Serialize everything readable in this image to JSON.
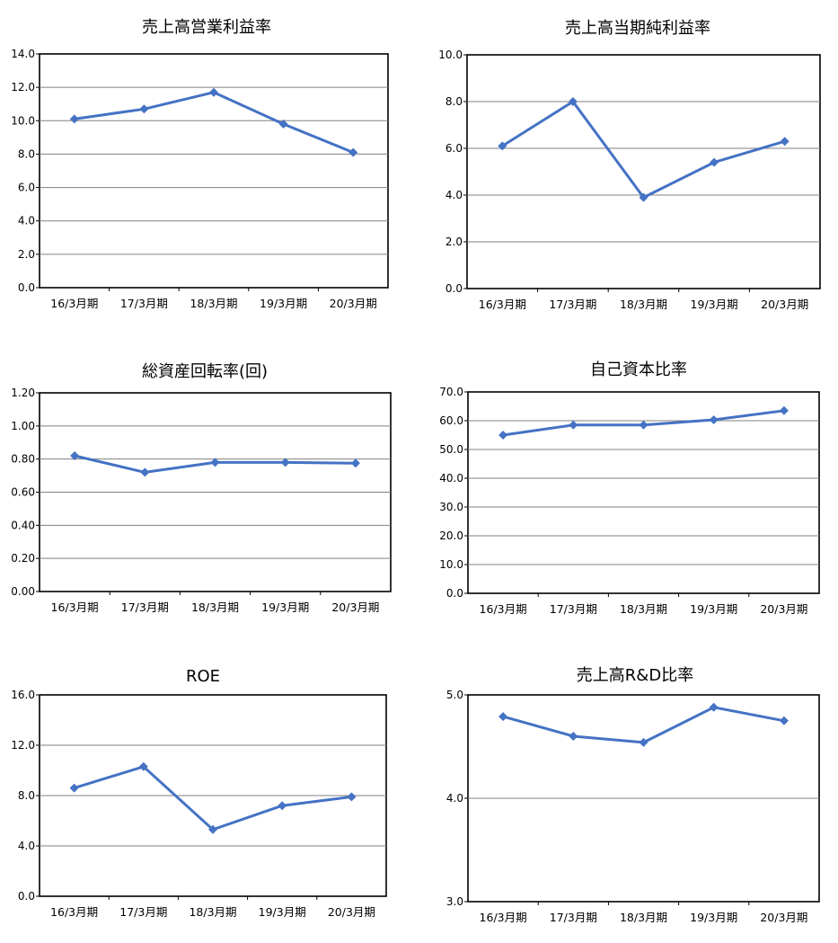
{
  "colors": {
    "series": "#4472C4",
    "grid": "#808080",
    "frame": "#000000"
  },
  "chart_data": [
    {
      "type": "line",
      "title": "売上高営業利益率",
      "categories": [
        "16/3月期",
        "17/3月期",
        "18/3月期",
        "19/3月期",
        "20/3月期"
      ],
      "values": [
        10.1,
        10.7,
        11.7,
        9.8,
        8.1
      ],
      "ylim": [
        0,
        14
      ],
      "yticks": [
        "0.0",
        "2.0",
        "4.0",
        "6.0",
        "8.0",
        "10.0",
        "12.0",
        "14.0"
      ],
      "grid": true,
      "legend": "none"
    },
    {
      "type": "line",
      "title": "売上高当期純利益率",
      "categories": [
        "16/3月期",
        "17/3月期",
        "18/3月期",
        "19/3月期",
        "20/3月期"
      ],
      "values": [
        6.1,
        8.0,
        3.9,
        5.4,
        6.3
      ],
      "ylim": [
        0,
        10
      ],
      "yticks": [
        "0.0",
        "2.0",
        "4.0",
        "6.0",
        "8.0",
        "10.0"
      ],
      "grid": true,
      "legend": "none"
    },
    {
      "type": "line",
      "title": "総資産回転率(回)",
      "categories": [
        "16/3月期",
        "17/3月期",
        "18/3月期",
        "19/3月期",
        "20/3月期"
      ],
      "values": [
        0.82,
        0.72,
        0.78,
        0.78,
        0.775
      ],
      "ylim": [
        0,
        1.2
      ],
      "yticks": [
        "0.00",
        "0.20",
        "0.40",
        "0.60",
        "0.80",
        "1.00",
        "1.20"
      ],
      "grid": true,
      "legend": "none"
    },
    {
      "type": "line",
      "title": "自己資本比率",
      "categories": [
        "16/3月期",
        "17/3月期",
        "18/3月期",
        "19/3月期",
        "20/3月期"
      ],
      "values": [
        55.0,
        58.5,
        58.5,
        60.3,
        63.5
      ],
      "ylim": [
        0,
        70
      ],
      "yticks": [
        "0.0",
        "10.0",
        "20.0",
        "30.0",
        "40.0",
        "50.0",
        "60.0",
        "70.0"
      ],
      "grid": true,
      "legend": "none"
    },
    {
      "type": "line",
      "title": "ROE",
      "categories": [
        "16/3月期",
        "17/3月期",
        "18/3月期",
        "19/3月期",
        "20/3月期"
      ],
      "values": [
        8.6,
        10.3,
        5.3,
        7.2,
        7.9
      ],
      "ylim": [
        0,
        16
      ],
      "yticks": [
        "0.0",
        "4.0",
        "8.0",
        "12.0",
        "16.0"
      ],
      "grid": true,
      "legend": "none"
    },
    {
      "type": "line",
      "title": "売上高R&D比率",
      "categories": [
        "16/3月期",
        "17/3月期",
        "18/3月期",
        "19/3月期",
        "20/3月期"
      ],
      "values": [
        4.79,
        4.6,
        4.54,
        4.88,
        4.75
      ],
      "ylim": [
        3,
        5
      ],
      "yticks": [
        "3.0",
        "4.0",
        "5.0"
      ],
      "grid": true,
      "legend": "none"
    }
  ]
}
